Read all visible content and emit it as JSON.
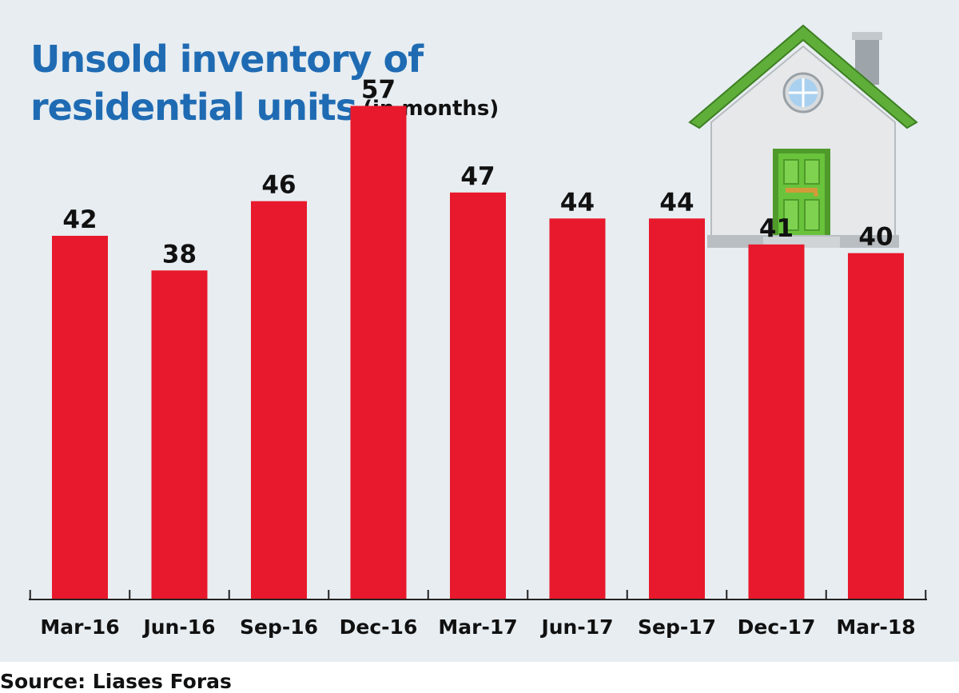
{
  "title": {
    "main_line1": "Unsold inventory of",
    "main_line2": "residential units",
    "unit": "(in months)"
  },
  "source": "Source: Liases Foras",
  "colors": {
    "bar": "#e8192c",
    "title": "#1f6bb3",
    "background": "#e7edf1",
    "roof": "#5fae3a",
    "door": "#69c33b"
  },
  "chart_data": {
    "type": "bar",
    "categories": [
      "Mar-16",
      "Jun-16",
      "Sep-16",
      "Dec-16",
      "Mar-17",
      "Jun-17",
      "Sep-17",
      "Dec-17",
      "Mar-18"
    ],
    "values": [
      42,
      38,
      46,
      57,
      47,
      44,
      44,
      41,
      40
    ],
    "title": "Unsold inventory of residential units (in months)",
    "xlabel": "",
    "ylabel": "",
    "ylim": [
      0,
      60
    ],
    "grid": false,
    "data_labels": true
  }
}
